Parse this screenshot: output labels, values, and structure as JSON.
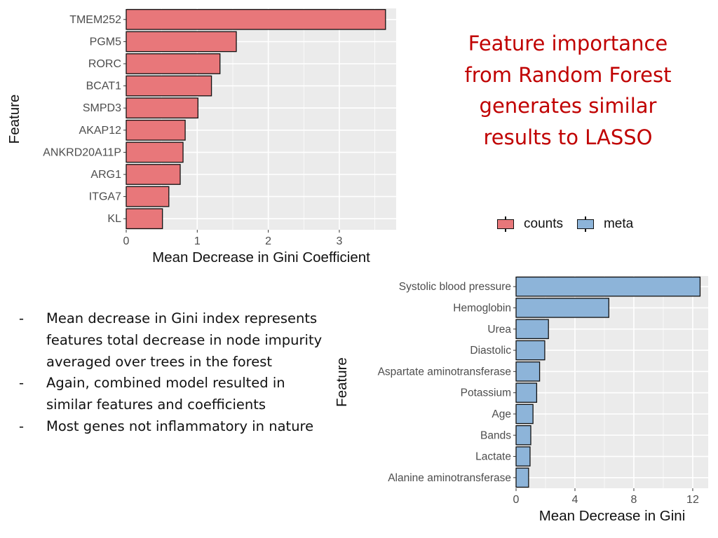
{
  "headline": [
    "Feature importance",
    "from Random Forest",
    "generates similar",
    "results to LASSO"
  ],
  "legend": {
    "items": [
      {
        "label": "counts",
        "color": "#e8777a"
      },
      {
        "label": "meta",
        "color": "#8db4d9"
      }
    ]
  },
  "bullets": [
    {
      "dash": "-",
      "text": "Mean decrease in Gini index represents features total decrease in node impurity averaged over trees in the forest"
    },
    {
      "dash": "-",
      "text": "Again, combined model resulted in similar features and coefficients"
    },
    {
      "dash": "-",
      "text": "Most genes not inflammatory in nature"
    }
  ],
  "chart_data": [
    {
      "type": "bar",
      "orientation": "horizontal",
      "series_name": "counts",
      "color": "#e8777a",
      "categories": [
        "TMEM252",
        "PGM5",
        "RORC",
        "BCAT1",
        "SMPD3",
        "AKAP12",
        "ANKRD20A11P",
        "ARG1",
        "ITGA7",
        "KL"
      ],
      "values": [
        3.65,
        1.55,
        1.32,
        1.2,
        1.01,
        0.83,
        0.8,
        0.76,
        0.6,
        0.51
      ],
      "xlabel": "Mean Decrease in Gini Coefficient",
      "ylabel": "Feature",
      "xticks": [
        0,
        1,
        2,
        3
      ],
      "xlim": [
        0,
        3.8
      ],
      "grid": true
    },
    {
      "type": "bar",
      "orientation": "horizontal",
      "series_name": "meta",
      "color": "#8db4d9",
      "categories": [
        "Systolic blood pressure",
        "Hemoglobin",
        "Urea",
        "Diastolic",
        "Aspartate aminotransferase",
        "Potassium",
        "Age",
        "Bands",
        "Lactate",
        "Alanine aminotransferase"
      ],
      "values": [
        12.5,
        6.3,
        2.2,
        1.95,
        1.6,
        1.4,
        1.15,
        1.0,
        0.95,
        0.85
      ],
      "xlabel": "Mean Decrease in Gini",
      "ylabel": "Feature",
      "xticks": [
        0,
        4,
        8,
        12
      ],
      "xlim": [
        0,
        13.05
      ],
      "grid": true
    }
  ]
}
